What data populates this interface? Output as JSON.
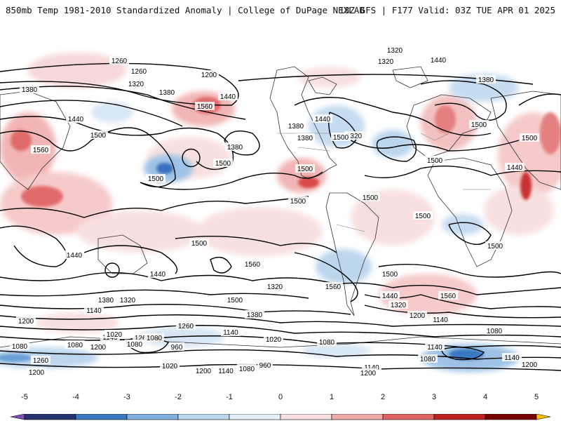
{
  "header": {
    "title_left": "850mb Temp 1981-2010 Standardized Anomaly | College of DuPage NEXLAB",
    "title_right": "18Z GFS | F177 Valid: 03Z TUE APR 01 2025"
  },
  "colorbar": {
    "ticks": [
      "-5",
      "-4",
      "-3",
      "-2",
      "-1",
      "0",
      "1",
      "2",
      "3",
      "4",
      "5"
    ],
    "colors": [
      "#7e4fb8",
      "#24336e",
      "#3a78c2",
      "#7fb0de",
      "#bcd6ee",
      "#e6eff8",
      "#f8e1e1",
      "#f0aaaa",
      "#e06363",
      "#c02020",
      "#7a0000",
      "#f5c000"
    ]
  },
  "contour_labels": [
    {
      "text": "1320"
    },
    {
      "text": "1260"
    },
    {
      "text": "1260"
    },
    {
      "text": "1200"
    },
    {
      "text": "1380"
    },
    {
      "text": "1320"
    },
    {
      "text": "1380"
    },
    {
      "text": "1440"
    },
    {
      "text": "1560"
    },
    {
      "text": "1440"
    },
    {
      "text": "1500"
    },
    {
      "text": "1560"
    },
    {
      "text": "1380"
    },
    {
      "text": "1500"
    },
    {
      "text": "1500"
    },
    {
      "text": "1500"
    },
    {
      "text": "1380"
    },
    {
      "text": "1440"
    },
    {
      "text": "1320"
    },
    {
      "text": "1500"
    },
    {
      "text": "1380"
    },
    {
      "text": "1320"
    },
    {
      "text": "1440"
    },
    {
      "text": "1380"
    },
    {
      "text": "1500"
    },
    {
      "text": "1440"
    },
    {
      "text": "1500"
    },
    {
      "text": "1500"
    },
    {
      "text": "1500"
    },
    {
      "text": "1500"
    },
    {
      "text": "1500"
    },
    {
      "text": "1500"
    },
    {
      "text": "1500"
    },
    {
      "text": "1560"
    },
    {
      "text": "1440"
    },
    {
      "text": "1500"
    },
    {
      "text": "1440"
    },
    {
      "text": "1320"
    },
    {
      "text": "1560"
    },
    {
      "text": "1500"
    },
    {
      "text": "1380"
    },
    {
      "text": "1320"
    },
    {
      "text": "1380"
    },
    {
      "text": "1320"
    },
    {
      "text": "1440"
    },
    {
      "text": "1560"
    },
    {
      "text": "1260"
    },
    {
      "text": "1140"
    },
    {
      "text": "1200"
    },
    {
      "text": "1140"
    },
    {
      "text": "1200"
    },
    {
      "text": "1260"
    },
    {
      "text": "1140"
    },
    {
      "text": "1020"
    },
    {
      "text": "1080"
    },
    {
      "text": "960"
    },
    {
      "text": "1020"
    },
    {
      "text": "1080"
    },
    {
      "text": "1140"
    },
    {
      "text": "1080"
    },
    {
      "text": "1200"
    },
    {
      "text": "1080"
    },
    {
      "text": "960"
    },
    {
      "text": "1080"
    },
    {
      "text": "1260"
    },
    {
      "text": "1020"
    },
    {
      "text": "1200"
    },
    {
      "text": "1140"
    },
    {
      "text": "1080"
    },
    {
      "text": "960"
    },
    {
      "text": "1140"
    },
    {
      "text": "1200"
    },
    {
      "text": "1080"
    },
    {
      "text": "1140"
    },
    {
      "text": "1200"
    },
    {
      "text": "1200"
    },
    {
      "text": "1080"
    },
    {
      "text": "1140"
    }
  ]
}
